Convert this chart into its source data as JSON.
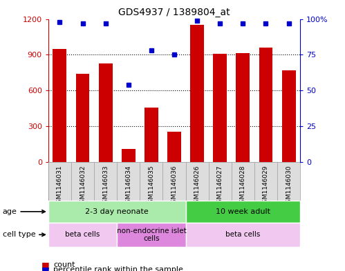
{
  "title": "GDS4937 / 1389804_at",
  "samples": [
    "GSM1146031",
    "GSM1146032",
    "GSM1146033",
    "GSM1146034",
    "GSM1146035",
    "GSM1146036",
    "GSM1146026",
    "GSM1146027",
    "GSM1146028",
    "GSM1146029",
    "GSM1146030"
  ],
  "counts": [
    950,
    740,
    830,
    110,
    460,
    255,
    1150,
    910,
    915,
    960,
    770
  ],
  "percentiles": [
    98,
    97,
    97,
    54,
    78,
    75,
    99,
    97,
    97,
    97,
    97
  ],
  "ylim_left": [
    0,
    1200
  ],
  "ylim_right": [
    0,
    100
  ],
  "yticks_left": [
    0,
    300,
    600,
    900,
    1200
  ],
  "yticks_right": [
    0,
    25,
    50,
    75,
    100
  ],
  "bar_color": "#cc0000",
  "dot_color": "#0000cc",
  "grid_color": "#000000",
  "age_groups": [
    {
      "label": "2-3 day neonate",
      "start": 0,
      "end": 6,
      "color": "#aaeaaa"
    },
    {
      "label": "10 week adult",
      "start": 6,
      "end": 11,
      "color": "#44cc44"
    }
  ],
  "cell_types": [
    {
      "label": "beta cells",
      "start": 0,
      "end": 3,
      "color": "#f0c8f0"
    },
    {
      "label": "non-endocrine islet\ncells",
      "start": 3,
      "end": 6,
      "color": "#dd88dd"
    },
    {
      "label": "beta cells",
      "start": 6,
      "end": 11,
      "color": "#f0c8f0"
    }
  ],
  "left_axis_color": "#cc0000",
  "right_axis_color": "#0000cc",
  "xlabel_bg_color": "#dddddd",
  "border_color": "#999999"
}
